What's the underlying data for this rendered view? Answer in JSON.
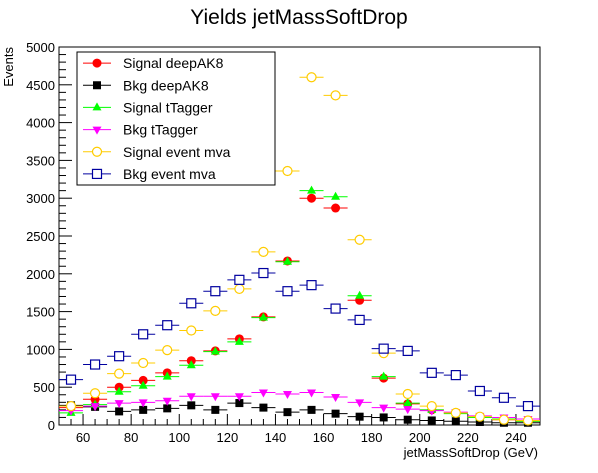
{
  "chart_data": {
    "type": "scatter",
    "title": "Yields jetMassSoftDrop",
    "xlabel": "jetMassSoftDrop (GeV)",
    "ylabel": "Events",
    "xlim": [
      50,
      250
    ],
    "ylim": [
      0,
      5000
    ],
    "xticks": [
      60,
      80,
      100,
      120,
      140,
      160,
      180,
      200,
      220,
      240
    ],
    "yticks": [
      0,
      500,
      1000,
      1500,
      2000,
      2500,
      3000,
      3500,
      4000,
      4500,
      5000
    ],
    "bin_width": 10,
    "x": [
      55,
      65,
      75,
      85,
      95,
      105,
      115,
      125,
      135,
      145,
      155,
      165,
      175,
      185,
      195,
      205,
      215,
      225,
      235,
      245
    ],
    "legend_position": "top-left",
    "series": [
      {
        "name": "Signal deepAK8",
        "color": "#ff0000",
        "marker": "circle-filled",
        "values": [
          230,
          340,
          500,
          590,
          690,
          850,
          980,
          1140,
          1430,
          2170,
          3000,
          2870,
          1650,
          620,
          280,
          200,
          160,
          100,
          70,
          50
        ]
      },
      {
        "name": "Bkg deepAK8",
        "color": "#000000",
        "marker": "square-filled",
        "values": [
          260,
          240,
          180,
          200,
          220,
          260,
          200,
          290,
          230,
          170,
          200,
          150,
          110,
          100,
          70,
          60,
          50,
          40,
          30,
          30
        ]
      },
      {
        "name": "Signal tTagger",
        "color": "#00ff00",
        "marker": "triangle-up-filled",
        "values": [
          160,
          270,
          440,
          520,
          640,
          790,
          970,
          1100,
          1420,
          2160,
          3100,
          3020,
          1710,
          640,
          290,
          200,
          150,
          100,
          80,
          50
        ]
      },
      {
        "name": "Bkg tTagger",
        "color": "#ff00ff",
        "marker": "triangle-down-filled",
        "values": [
          190,
          250,
          290,
          300,
          320,
          380,
          380,
          380,
          430,
          410,
          430,
          370,
          300,
          230,
          210,
          190,
          170,
          120,
          100,
          80
        ]
      },
      {
        "name": "Signal event mva",
        "color": "#ffcc00",
        "marker": "circle-open",
        "values": [
          250,
          420,
          680,
          820,
          990,
          1250,
          1510,
          1800,
          2290,
          3360,
          4600,
          4360,
          2450,
          950,
          410,
          250,
          160,
          110,
          70,
          60
        ]
      },
      {
        "name": "Bkg event mva",
        "color": "#00009f",
        "marker": "square-open",
        "values": [
          600,
          800,
          910,
          1200,
          1320,
          1610,
          1770,
          1920,
          2010,
          1770,
          1850,
          1540,
          1390,
          1010,
          980,
          690,
          660,
          450,
          360,
          250
        ]
      }
    ]
  }
}
